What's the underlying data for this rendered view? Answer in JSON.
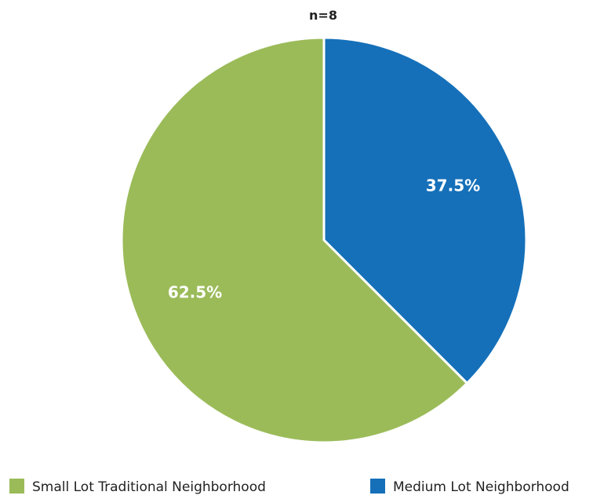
{
  "chart_data": {
    "type": "pie",
    "title": "n=8",
    "categories": [
      "Medium Lot Neighborhood",
      "Small Lot Traditional Neighborhood"
    ],
    "values": [
      37.5,
      62.5
    ],
    "value_labels": [
      "37.5%",
      "62.5%"
    ],
    "colors": [
      "#1570b9",
      "#9bbb59"
    ],
    "legend": {
      "placement": "bottom",
      "order": [
        "Small Lot Traditional Neighborhood",
        "Medium Lot Neighborhood"
      ]
    }
  }
}
